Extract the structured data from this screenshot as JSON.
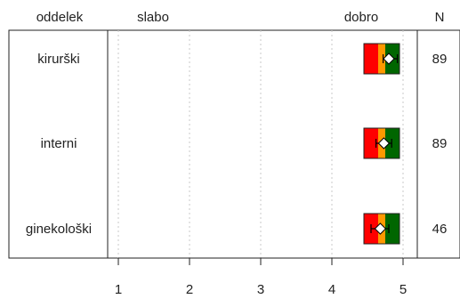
{
  "header": {
    "col_label": "oddelek",
    "left_label": "slabo",
    "right_label": "dobro",
    "n_label": "N"
  },
  "chart_data": {
    "type": "boxplot-scale",
    "xlim": [
      0.8,
      5.2
    ],
    "ticks": [
      1,
      2,
      3,
      4,
      5
    ],
    "grid": "vertical dotted at ticks",
    "band_colors": [
      "#ff0000",
      "#ff9900",
      "#006600"
    ],
    "rows": [
      {
        "label": "kirurški",
        "n": "89",
        "bands": [
          4.45,
          4.65,
          4.75,
          4.95
        ],
        "mean": 4.8,
        "ci": [
          4.72,
          4.92
        ]
      },
      {
        "label": "interni",
        "n": "89",
        "bands": [
          4.45,
          4.65,
          4.75,
          4.95
        ],
        "mean": 4.73,
        "ci": [
          4.62,
          4.84
        ]
      },
      {
        "label": "ginekološki",
        "n": "46",
        "bands": [
          4.45,
          4.65,
          4.75,
          4.95
        ],
        "mean": 4.68,
        "ci": [
          4.55,
          4.8
        ]
      }
    ]
  }
}
